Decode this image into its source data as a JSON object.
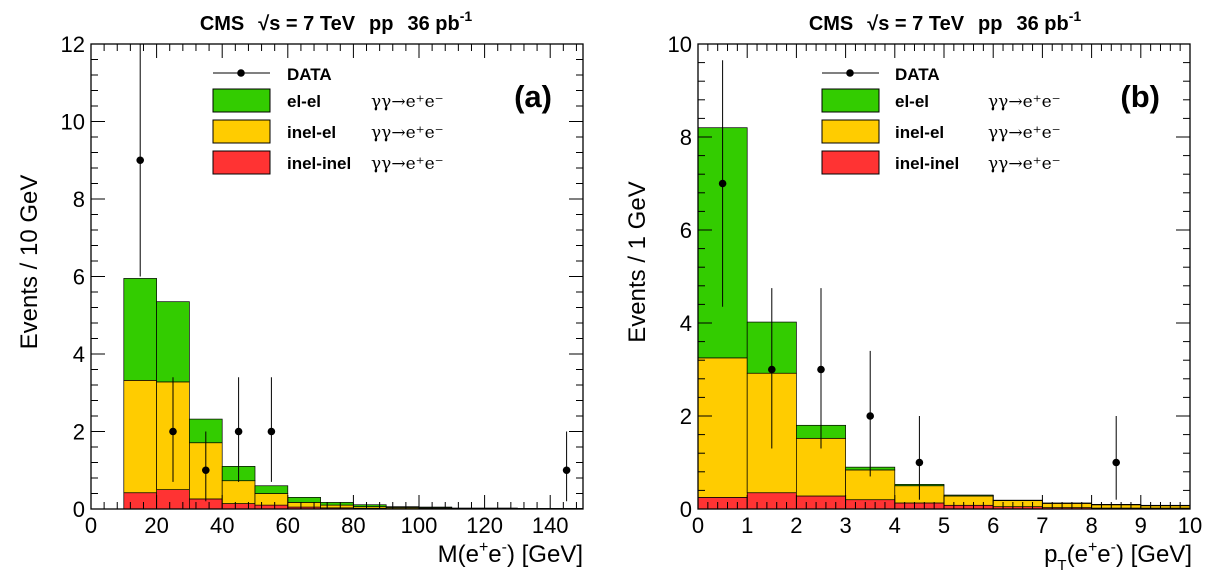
{
  "chart_data": [
    {
      "type": "bar",
      "panel_label": "(a)",
      "title": "CMS √s = 7 TeV pp 36 pb-1",
      "title_parts": {
        "experiment": "CMS",
        "sqrt": "√",
        "s_part": "s = 7 TeV",
        "beam": "pp",
        "lumi": "36 pb",
        "lumi_exp": "-1"
      },
      "xlabel_parts": {
        "pre": "M(e",
        "sup1": "+",
        "mid": "e",
        "sup2": "-",
        "post": ") [GeV]"
      },
      "ylabel": "Events / 10 GeV",
      "xlim": [
        0,
        150
      ],
      "ylim": [
        0,
        12
      ],
      "x_ticks": [
        "0",
        "20",
        "40",
        "60",
        "80",
        "100",
        "120",
        "140"
      ],
      "y_ticks": [
        "0",
        "2",
        "4",
        "6",
        "8",
        "10",
        "12"
      ],
      "bin_edges": [
        10,
        20,
        30,
        40,
        50,
        60,
        70,
        80,
        90,
        100,
        110,
        120,
        130,
        140,
        150
      ],
      "stacked_series": [
        {
          "label": "inel-inel",
          "color": "#ff3333",
          "values": [
            0.42,
            0.5,
            0.26,
            0.14,
            0.1,
            0.05,
            0.03,
            0.02,
            0.01,
            0.01,
            0.005,
            0.005,
            0.005,
            0.005
          ]
        },
        {
          "label": "inel-el",
          "color": "#ffcc00",
          "values": [
            2.9,
            2.78,
            1.45,
            0.59,
            0.3,
            0.12,
            0.07,
            0.04,
            0.03,
            0.02,
            0.01,
            0.01,
            0.005,
            0.005
          ]
        },
        {
          "label": "el-el",
          "color": "#33cc00",
          "values": [
            2.63,
            2.07,
            0.61,
            0.37,
            0.2,
            0.13,
            0.07,
            0.05,
            0.02,
            0.02,
            0.01,
            0.01,
            0.005,
            0.005
          ]
        }
      ],
      "data_points": {
        "label": "DATA",
        "x": [
          15,
          25,
          35,
          45,
          55,
          145
        ],
        "y": [
          9,
          2,
          1,
          2,
          2,
          1
        ],
        "err_low": [
          3,
          1.3,
          0.8,
          1.3,
          1.3,
          0.8
        ],
        "err_high": [
          4.2,
          1.4,
          1.0,
          1.4,
          1.4,
          1.0
        ]
      },
      "legend": [
        {
          "kind": "marker",
          "label": "DATA"
        },
        {
          "kind": "fill",
          "label": "el-el",
          "color": "#33cc00",
          "process": "γγ→e⁺e⁻"
        },
        {
          "kind": "fill",
          "label": "inel-el",
          "color": "#ffcc00",
          "process": "γγ→e⁺e⁻"
        },
        {
          "kind": "fill",
          "label": "inel-inel",
          "color": "#ff3333",
          "process": "γγ→e⁺e⁻"
        }
      ]
    },
    {
      "type": "bar",
      "panel_label": "(b)",
      "title": "CMS √s = 7 TeV pp 36 pb-1",
      "title_parts": {
        "experiment": "CMS",
        "sqrt": "√",
        "s_part": "s = 7 TeV",
        "beam": "pp",
        "lumi": "36 pb",
        "lumi_exp": "-1"
      },
      "xlabel_parts": {
        "pre": "p",
        "sub": "T",
        "mid1": "(e",
        "sup1": "+",
        "mid2": "e",
        "sup2": "-",
        "post": ") [GeV]"
      },
      "ylabel": "Events / 1 GeV",
      "xlim": [
        0,
        10
      ],
      "ylim": [
        0,
        10
      ],
      "x_ticks": [
        "0",
        "1",
        "2",
        "3",
        "4",
        "5",
        "6",
        "7",
        "8",
        "9",
        "10"
      ],
      "y_ticks": [
        "0",
        "2",
        "4",
        "6",
        "8",
        "10"
      ],
      "bin_edges": [
        0,
        1,
        2,
        3,
        4,
        5,
        6,
        7,
        8,
        9,
        10
      ],
      "stacked_series": [
        {
          "label": "inel-inel",
          "color": "#ff3333",
          "values": [
            0.25,
            0.35,
            0.28,
            0.2,
            0.13,
            0.08,
            0.05,
            0.03,
            0.02,
            0.02
          ]
        },
        {
          "label": "inel-el",
          "color": "#ffcc00",
          "values": [
            3.0,
            2.57,
            1.24,
            0.64,
            0.37,
            0.2,
            0.13,
            0.09,
            0.07,
            0.05
          ]
        },
        {
          "label": "el-el",
          "color": "#33cc00",
          "values": [
            4.95,
            1.1,
            0.28,
            0.06,
            0.03,
            0.02,
            0.01,
            0.01,
            0.01,
            0.01
          ]
        }
      ],
      "data_points": {
        "label": "DATA",
        "x": [
          0.5,
          1.5,
          2.5,
          3.5,
          4.5,
          8.5
        ],
        "y": [
          7,
          3,
          3,
          2,
          1,
          1
        ],
        "err_low": [
          2.65,
          1.7,
          1.7,
          1.3,
          0.8,
          0.8
        ],
        "err_high": [
          2.65,
          1.75,
          1.75,
          1.4,
          1.0,
          1.0
        ]
      },
      "legend": [
        {
          "kind": "marker",
          "label": "DATA"
        },
        {
          "kind": "fill",
          "label": "el-el",
          "color": "#33cc00",
          "process": "γγ→e⁺e⁻"
        },
        {
          "kind": "fill",
          "label": "inel-el",
          "color": "#ffcc00",
          "process": "γγ→e⁺e⁻"
        },
        {
          "kind": "fill",
          "label": "inel-inel",
          "color": "#ff3333",
          "process": "γγ→e⁺e⁻"
        }
      ]
    }
  ]
}
